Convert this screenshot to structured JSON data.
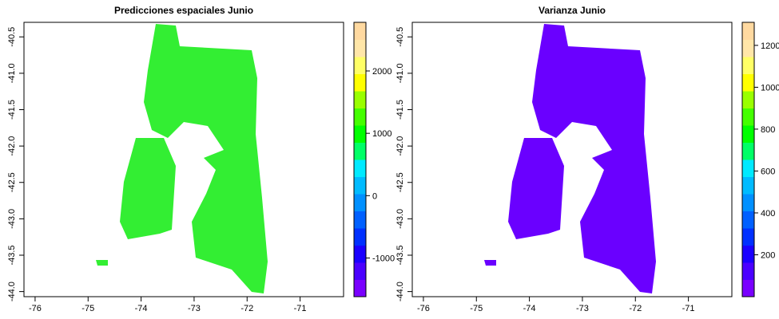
{
  "panels": [
    {
      "title": "Predicciones espaciales Junio",
      "xlim": [
        -76.21,
        -70.18
      ],
      "ylim": [
        -44.07,
        -40.3
      ],
      "xticks": [
        -76,
        -75,
        -74,
        -73,
        -72,
        -71
      ],
      "yticks": [
        -40.5,
        {
          "value": -41,
          "label": "-41.0"
        },
        -41.5,
        {
          "value": -42,
          "label": "-42.0"
        },
        -42.5,
        {
          "value": -43,
          "label": "-43.0"
        },
        -43.5,
        {
          "value": -44,
          "label": "-44.0"
        }
      ],
      "land_color": "#33ee33",
      "colorbar": {
        "lim": [
          -1620,
          2780
        ],
        "ticks": [
          -1000,
          0,
          1000,
          2000
        ],
        "colors": [
          "#7a00ff",
          "#4a00ff",
          "#1a00ff",
          "#0030ff",
          "#0060ff",
          "#0090ff",
          "#00bbff",
          "#00eaff",
          "#00ff66",
          "#00ff00",
          "#44ff00",
          "#99ff00",
          "#ffff00",
          "#ffff66",
          "#ffe6a8",
          "#ffd9a0"
        ]
      }
    },
    {
      "title": "Varianza Junio",
      "xlim": [
        -76.21,
        -70.18
      ],
      "ylim": [
        -44.07,
        -40.3
      ],
      "xticks": [
        -76,
        -75,
        -74,
        -73,
        -72,
        -71
      ],
      "yticks": [
        -40.5,
        {
          "value": -41,
          "label": "-41.0"
        },
        -41.5,
        {
          "value": -42,
          "label": "-42.0"
        },
        -42.5,
        {
          "value": -43,
          "label": "-43.0"
        },
        -43.5,
        {
          "value": -44,
          "label": "-44.0"
        }
      ],
      "land_color": "#6a00ff",
      "colorbar": {
        "lim": [
          0,
          1310
        ],
        "ticks": [
          200,
          400,
          600,
          800,
          1000,
          1200
        ],
        "colors": [
          "#7a00ff",
          "#4a00ff",
          "#1a00ff",
          "#0030ff",
          "#0060ff",
          "#0090ff",
          "#00bbff",
          "#00eaff",
          "#00ff66",
          "#00ff00",
          "#44ff00",
          "#99ff00",
          "#ffff00",
          "#ffff66",
          "#ffe6a8",
          "#ffd9a0"
        ]
      }
    }
  ]
}
